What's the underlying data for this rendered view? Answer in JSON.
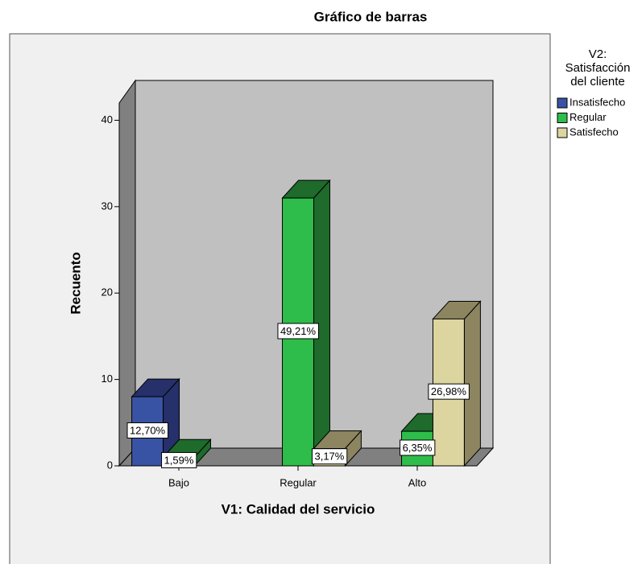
{
  "chart_data": {
    "type": "bar3d",
    "title": "Gráfico de barras",
    "x_label": "V1: Calidad del servicio",
    "y_label": "Recuento",
    "legend_title": [
      "V2:",
      "Satisfacción",
      "del cliente"
    ],
    "categories": [
      "Bajo",
      "Regular",
      "Alto"
    ],
    "series": [
      {
        "name": "Insatisfecho",
        "color": "#3953a4",
        "dark": "#26306a",
        "values": [
          8,
          null,
          null
        ],
        "percentages": [
          12.7,
          null,
          null
        ],
        "percentage_labels": [
          "12,70%",
          null,
          null
        ]
      },
      {
        "name": "Regular",
        "color": "#2ebd4a",
        "dark": "#1e6b2c",
        "values": [
          1,
          31,
          4
        ],
        "percentages": [
          1.59,
          49.21,
          6.35
        ],
        "percentage_labels": [
          "1,59%",
          "49,21%",
          "6,35%"
        ]
      },
      {
        "name": "Satisfecho",
        "color": "#ddd5a0",
        "dark": "#8c8560",
        "values": [
          null,
          2,
          17
        ],
        "percentages": [
          null,
          3.17,
          26.98
        ],
        "percentage_labels": [
          null,
          "3,17%",
          "26,98%"
        ]
      }
    ],
    "ylim": [
      0,
      42
    ],
    "yticks": [
      0,
      10,
      20,
      30,
      40
    ]
  }
}
